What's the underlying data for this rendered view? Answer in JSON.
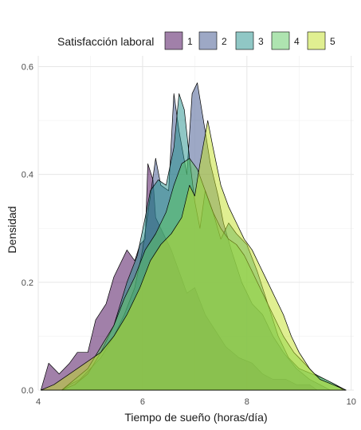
{
  "chart_data": {
    "type": "area",
    "subtype": "overlapping density",
    "xlabel": "Tiempo de sueño (horas/día)",
    "ylabel": "Densidad",
    "xlim": [
      4,
      10.05
    ],
    "ylim": [
      0,
      0.62
    ],
    "x_ticks": [
      4,
      6,
      8,
      10
    ],
    "y_ticks": [
      0.0,
      0.2,
      0.4,
      0.6
    ],
    "x_tick_labels": [
      "4",
      "6",
      "8",
      "10"
    ],
    "y_tick_labels": [
      "0.0",
      "0.2",
      "0.4",
      "0.6"
    ],
    "grid": true,
    "legend": {
      "title": "Satisfacción laboral",
      "position": "top",
      "entries": [
        "1",
        "2",
        "3",
        "4",
        "5"
      ]
    },
    "series": [
      {
        "name": "1",
        "color": "#440154",
        "points": [
          [
            4.05,
            0.0
          ],
          [
            4.2,
            0.05
          ],
          [
            4.4,
            0.03
          ],
          [
            4.6,
            0.05
          ],
          [
            4.75,
            0.07
          ],
          [
            4.95,
            0.07
          ],
          [
            5.1,
            0.13
          ],
          [
            5.3,
            0.16
          ],
          [
            5.45,
            0.21
          ],
          [
            5.7,
            0.26
          ],
          [
            5.85,
            0.24
          ],
          [
            5.95,
            0.27
          ],
          [
            6.05,
            0.28
          ],
          [
            6.1,
            0.42
          ],
          [
            6.2,
            0.39
          ],
          [
            6.25,
            0.32
          ],
          [
            6.35,
            0.3
          ],
          [
            6.55,
            0.26
          ],
          [
            6.7,
            0.22
          ],
          [
            6.85,
            0.18
          ],
          [
            7.0,
            0.19
          ],
          [
            7.2,
            0.14
          ],
          [
            7.4,
            0.11
          ],
          [
            7.6,
            0.08
          ],
          [
            7.85,
            0.06
          ],
          [
            8.1,
            0.05
          ],
          [
            8.3,
            0.03
          ],
          [
            8.5,
            0.02
          ],
          [
            8.75,
            0.02
          ],
          [
            8.95,
            0.01
          ],
          [
            9.2,
            0.01
          ],
          [
            9.35,
            0.0
          ]
        ]
      },
      {
        "name": "2",
        "color": "#3b528b",
        "points": [
          [
            4.45,
            0.0
          ],
          [
            4.6,
            0.01
          ],
          [
            4.8,
            0.02
          ],
          [
            5.0,
            0.04
          ],
          [
            5.2,
            0.06
          ],
          [
            5.45,
            0.1
          ],
          [
            5.65,
            0.14
          ],
          [
            5.85,
            0.19
          ],
          [
            6.0,
            0.26
          ],
          [
            6.15,
            0.36
          ],
          [
            6.25,
            0.43
          ],
          [
            6.35,
            0.38
          ],
          [
            6.5,
            0.37
          ],
          [
            6.6,
            0.55
          ],
          [
            6.7,
            0.48
          ],
          [
            6.85,
            0.4
          ],
          [
            6.95,
            0.55
          ],
          [
            7.05,
            0.57
          ],
          [
            7.2,
            0.48
          ],
          [
            7.3,
            0.42
          ],
          [
            7.45,
            0.36
          ],
          [
            7.55,
            0.31
          ],
          [
            7.7,
            0.26
          ],
          [
            7.9,
            0.2
          ],
          [
            8.1,
            0.16
          ],
          [
            8.3,
            0.14
          ],
          [
            8.5,
            0.1
          ],
          [
            8.7,
            0.07
          ],
          [
            8.95,
            0.04
          ],
          [
            9.2,
            0.02
          ],
          [
            9.4,
            0.01
          ],
          [
            9.6,
            0.0
          ]
        ]
      },
      {
        "name": "3",
        "color": "#21908c",
        "points": [
          [
            4.45,
            0.0
          ],
          [
            4.7,
            0.01
          ],
          [
            4.95,
            0.03
          ],
          [
            5.2,
            0.07
          ],
          [
            5.45,
            0.12
          ],
          [
            5.7,
            0.2
          ],
          [
            5.9,
            0.25
          ],
          [
            6.05,
            0.32
          ],
          [
            6.15,
            0.37
          ],
          [
            6.3,
            0.39
          ],
          [
            6.45,
            0.38
          ],
          [
            6.6,
            0.45
          ],
          [
            6.7,
            0.55
          ],
          [
            6.8,
            0.52
          ],
          [
            6.9,
            0.43
          ],
          [
            7.0,
            0.35
          ],
          [
            7.1,
            0.3
          ],
          [
            7.2,
            0.37
          ],
          [
            7.35,
            0.33
          ],
          [
            7.5,
            0.28
          ],
          [
            7.65,
            0.31
          ],
          [
            7.8,
            0.29
          ],
          [
            8.0,
            0.27
          ],
          [
            8.2,
            0.22
          ],
          [
            8.4,
            0.16
          ],
          [
            8.6,
            0.1
          ],
          [
            8.8,
            0.06
          ],
          [
            9.0,
            0.04
          ],
          [
            9.25,
            0.03
          ],
          [
            9.5,
            0.02
          ],
          [
            9.7,
            0.01
          ],
          [
            9.9,
            0.0
          ]
        ]
      },
      {
        "name": "4",
        "color": "#5ec962",
        "points": [
          [
            4.45,
            0.0
          ],
          [
            4.7,
            0.02
          ],
          [
            4.95,
            0.04
          ],
          [
            5.2,
            0.08
          ],
          [
            5.45,
            0.12
          ],
          [
            5.65,
            0.17
          ],
          [
            5.85,
            0.21
          ],
          [
            6.05,
            0.26
          ],
          [
            6.25,
            0.29
          ],
          [
            6.45,
            0.33
          ],
          [
            6.6,
            0.38
          ],
          [
            6.75,
            0.42
          ],
          [
            6.9,
            0.43
          ],
          [
            7.05,
            0.41
          ],
          [
            7.2,
            0.37
          ],
          [
            7.35,
            0.33
          ],
          [
            7.5,
            0.3
          ],
          [
            7.65,
            0.28
          ],
          [
            7.8,
            0.27
          ],
          [
            7.95,
            0.25
          ],
          [
            8.1,
            0.22
          ],
          [
            8.3,
            0.18
          ],
          [
            8.5,
            0.14
          ],
          [
            8.7,
            0.1
          ],
          [
            8.9,
            0.07
          ],
          [
            9.1,
            0.05
          ],
          [
            9.3,
            0.03
          ],
          [
            9.5,
            0.02
          ],
          [
            9.7,
            0.01
          ],
          [
            9.85,
            0.0
          ]
        ]
      },
      {
        "name": "5",
        "color": "#c2df23",
        "points": [
          [
            4.05,
            0.0
          ],
          [
            4.3,
            0.01
          ],
          [
            4.6,
            0.03
          ],
          [
            4.9,
            0.05
          ],
          [
            5.2,
            0.07
          ],
          [
            5.45,
            0.1
          ],
          [
            5.7,
            0.14
          ],
          [
            5.95,
            0.19
          ],
          [
            6.15,
            0.24
          ],
          [
            6.35,
            0.27
          ],
          [
            6.55,
            0.29
          ],
          [
            6.75,
            0.32
          ],
          [
            6.9,
            0.38
          ],
          [
            7.0,
            0.36
          ],
          [
            7.1,
            0.42
          ],
          [
            7.25,
            0.5
          ],
          [
            7.35,
            0.45
          ],
          [
            7.5,
            0.38
          ],
          [
            7.65,
            0.34
          ],
          [
            7.8,
            0.31
          ],
          [
            7.95,
            0.28
          ],
          [
            8.1,
            0.26
          ],
          [
            8.25,
            0.23
          ],
          [
            8.4,
            0.2
          ],
          [
            8.55,
            0.17
          ],
          [
            8.7,
            0.14
          ],
          [
            8.85,
            0.1
          ],
          [
            9.0,
            0.07
          ],
          [
            9.2,
            0.04
          ],
          [
            9.4,
            0.02
          ],
          [
            9.65,
            0.01
          ],
          [
            9.9,
            0.0
          ]
        ]
      }
    ]
  }
}
